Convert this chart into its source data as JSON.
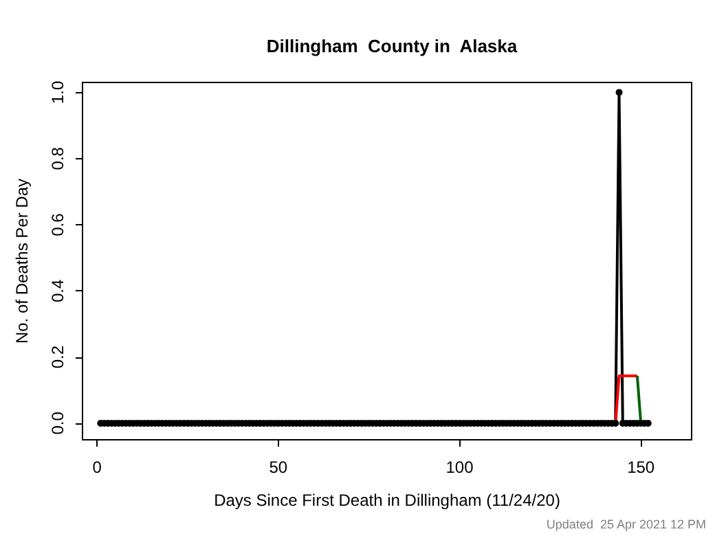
{
  "chart_data": {
    "type": "line",
    "title": "Dillingham  County in  Alaska",
    "xlabel": "Days Since First Death in Dillingham (11/24/20)",
    "ylabel": "No. of Deaths Per Day",
    "annotations": [
      "Updated  25 Apr 2021 12 PM"
    ],
    "xlim": [
      -4,
      164
    ],
    "xticks": [
      0,
      50,
      100,
      150
    ],
    "ylim": [
      -0.05,
      1.03
    ],
    "yticks": [
      {
        "value": 0,
        "label": "0.0"
      },
      {
        "value": 0.2,
        "label": "0.2"
      },
      {
        "value": 0.4,
        "label": "0.4"
      },
      {
        "value": 0.6,
        "label": "0.6"
      },
      {
        "value": 0.8,
        "label": "0.8"
      },
      {
        "value": 1,
        "label": "1.0"
      }
    ],
    "grid": false,
    "marker": "circle",
    "series": [
      {
        "color": "#000000",
        "x": [
          1,
          2,
          3,
          4,
          5,
          6,
          7,
          8,
          9,
          10,
          11,
          12,
          13,
          14,
          15,
          16,
          17,
          18,
          19,
          20,
          21,
          22,
          23,
          24,
          25,
          26,
          27,
          28,
          29,
          30,
          31,
          32,
          33,
          34,
          35,
          36,
          37,
          38,
          39,
          40,
          41,
          42,
          43,
          44,
          45,
          46,
          47,
          48,
          49,
          50,
          51,
          52,
          53,
          54,
          55,
          56,
          57,
          58,
          59,
          60,
          61,
          62,
          63,
          64,
          65,
          66,
          67,
          68,
          69,
          70,
          71,
          72,
          73,
          74,
          75,
          76,
          77,
          78,
          79,
          80,
          81,
          82,
          83,
          84,
          85,
          86,
          87,
          88,
          89,
          90,
          91,
          92,
          93,
          94,
          95,
          96,
          97,
          98,
          99,
          100,
          101,
          102,
          103,
          104,
          105,
          106,
          107,
          108,
          109,
          110,
          111,
          112,
          113,
          114,
          115,
          116,
          117,
          118,
          119,
          120,
          121,
          122,
          123,
          124,
          125,
          126,
          127,
          128,
          129,
          130,
          131,
          132,
          133,
          134,
          135,
          136,
          137,
          138,
          139,
          140,
          141,
          142,
          143,
          144,
          145,
          146,
          147,
          148,
          149,
          150,
          151,
          152
        ],
        "values": [
          0,
          0,
          0,
          0,
          0,
          0,
          0,
          0,
          0,
          0,
          0,
          0,
          0,
          0,
          0,
          0,
          0,
          0,
          0,
          0,
          0,
          0,
          0,
          0,
          0,
          0,
          0,
          0,
          0,
          0,
          0,
          0,
          0,
          0,
          0,
          0,
          0,
          0,
          0,
          0,
          0,
          0,
          0,
          0,
          0,
          0,
          0,
          0,
          0,
          0,
          0,
          0,
          0,
          0,
          0,
          0,
          0,
          0,
          0,
          0,
          0,
          0,
          0,
          0,
          0,
          0,
          0,
          0,
          0,
          0,
          0,
          0,
          0,
          0,
          0,
          0,
          0,
          0,
          0,
          0,
          0,
          0,
          0,
          0,
          0,
          0,
          0,
          0,
          0,
          0,
          0,
          0,
          0,
          0,
          0,
          0,
          0,
          0,
          0,
          0,
          0,
          0,
          0,
          0,
          0,
          0,
          0,
          0,
          0,
          0,
          0,
          0,
          0,
          0,
          0,
          0,
          0,
          0,
          0,
          0,
          0,
          0,
          0,
          0,
          0,
          0,
          0,
          0,
          0,
          0,
          0,
          0,
          0,
          0,
          0,
          0,
          0,
          0,
          0,
          0,
          0,
          0,
          0,
          1,
          0,
          0,
          0,
          0,
          0,
          0,
          0,
          0
        ]
      },
      {
        "color": "#ff0000",
        "marker": "none",
        "x": [
          7,
          143,
          144,
          149
        ],
        "values": [
          0,
          0,
          0.143,
          0.143
        ]
      },
      {
        "color": "#006400",
        "marker": "none",
        "x": [
          149,
          150,
          151,
          152
        ],
        "values": [
          0.143,
          0,
          0,
          0
        ]
      }
    ]
  }
}
